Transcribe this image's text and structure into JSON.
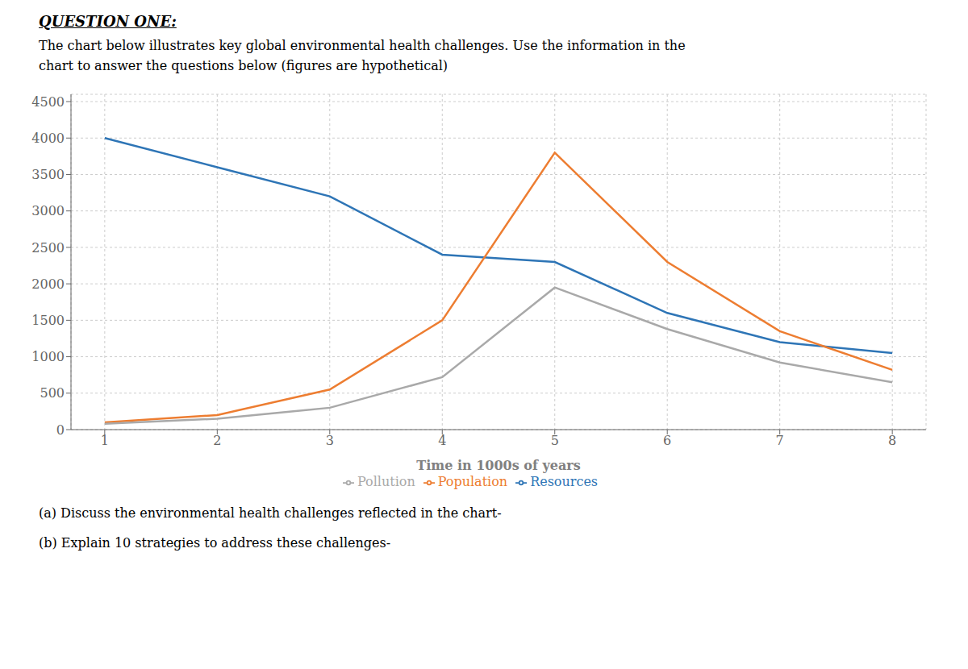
{
  "chart_data": {
    "type": "line",
    "title": "QUESTION ONE:",
    "subtitle": [
      "The chart below illustrates key global environmental health challenges. Use the information in the",
      "chart to answer the questions below (figures are hypothetical)"
    ],
    "annotations": [
      "(a) Discuss the environmental health challenges reflected in the chart-",
      "(b) Explain 10 strategies to address these challenges-"
    ],
    "x_label": "Time in 1000s of years",
    "x": [
      1,
      2,
      3,
      4,
      5,
      6,
      7,
      8
    ],
    "series": [
      {
        "name": "Resources",
        "color": "#2E75B6",
        "values": [
          4000,
          3600,
          3200,
          2400,
          2300,
          1600,
          1200,
          1050
        ]
      },
      {
        "name": "Population",
        "color": "#ED7D31",
        "values": [
          100,
          200,
          550,
          1500,
          3800,
          2300,
          1350,
          820
        ]
      },
      {
        "name": "Pollution",
        "color": "#A9A9A9",
        "values": [
          80,
          150,
          300,
          720,
          1950,
          1380,
          920,
          650
        ]
      }
    ],
    "xlim": [
      0.7,
      8.3
    ],
    "xticks": [
      1,
      2,
      3,
      4,
      5,
      6,
      7,
      8
    ],
    "ylim": [
      0,
      4600
    ],
    "yticks": [
      0,
      500,
      1000,
      1500,
      2000,
      2500,
      3000,
      3500,
      4000,
      4500
    ],
    "grid": true,
    "legend": "bottom"
  }
}
